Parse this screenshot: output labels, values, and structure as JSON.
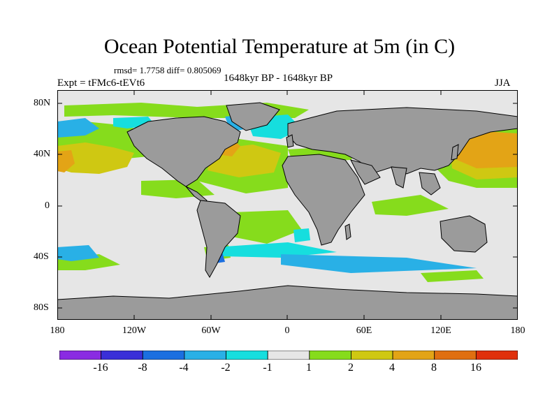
{
  "title": "Ocean Potential Temperature at 5m (in C)",
  "stats": "rmsd= 1.7758 diff= 0.805069",
  "experiment": "Expt = tFMc6-tEVt6",
  "period": "1648kyr BP - 1648kyr BP",
  "season": "JJA",
  "y_axis_labels": [
    "80N",
    "40N",
    "0",
    "40S",
    "80S"
  ],
  "x_axis_labels": [
    "180",
    "120W",
    "60W",
    "0",
    "60E",
    "120E",
    "180"
  ],
  "colorbar": {
    "colors": [
      "#8a2be2",
      "#3a2fd8",
      "#1b6fe0",
      "#29b0e6",
      "#16dede",
      "#e6e6e6",
      "#86dc1c",
      "#cfc812",
      "#e3a416",
      "#e06f10",
      "#e0300c"
    ],
    "labels": [
      "-16",
      "-8",
      "-4",
      "-2",
      "-1",
      "1",
      "2",
      "4",
      "8",
      "16"
    ]
  },
  "map_colors": {
    "land": "#9b9b9b",
    "coast": "#000000",
    "neutral": "#e6e6e6"
  }
}
